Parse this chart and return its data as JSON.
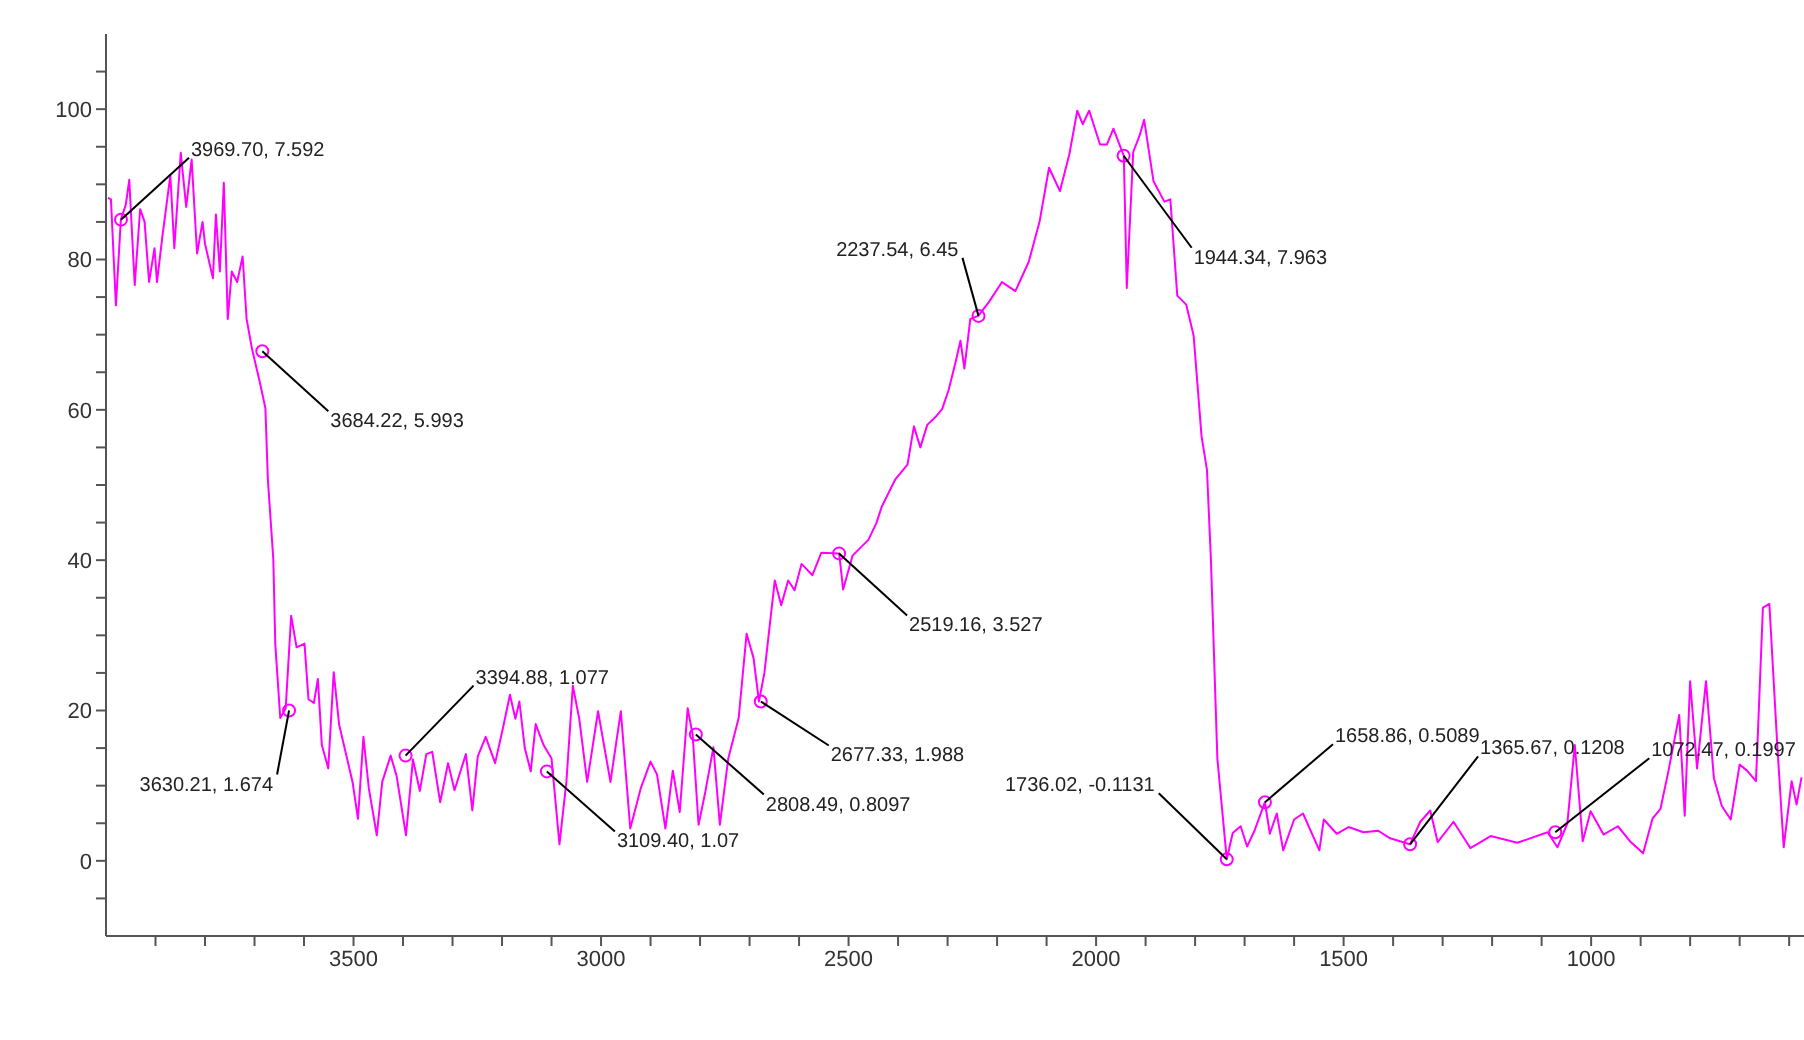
{
  "chart_data": {
    "type": "line",
    "x": [
      3996,
      3990,
      3980,
      3970,
      3960,
      3953,
      3942,
      3931,
      3922,
      3913,
      3902,
      3897,
      3886,
      3870,
      3862,
      3849,
      3838,
      3827,
      3816,
      3805,
      3800,
      3784,
      3778,
      3770,
      3762,
      3754,
      3746,
      3735,
      3724,
      3716,
      3705,
      3689,
      3678,
      3673,
      3662,
      3658,
      3648,
      3637,
      3626,
      3615,
      3599,
      3591,
      3580,
      3572,
      3564,
      3551,
      3540,
      3529,
      3518,
      3502,
      3491,
      3480,
      3469,
      3453,
      3442,
      3425,
      3413,
      3394,
      3380,
      3366,
      3353,
      3341,
      3325,
      3309,
      3296,
      3273,
      3260,
      3249,
      3233,
      3214,
      3198,
      3184,
      3173,
      3165,
      3154,
      3142,
      3132,
      3116,
      3100,
      3084,
      3070,
      3057,
      3044,
      3028,
      3006,
      2981,
      2960,
      2941,
      2920,
      2900,
      2887,
      2870,
      2855,
      2841,
      2825,
      2815,
      2803,
      2789,
      2773,
      2760,
      2743,
      2722,
      2706,
      2692,
      2681,
      2670,
      2649,
      2636,
      2622,
      2609,
      2595,
      2573,
      2555,
      2519,
      2511,
      2492,
      2460,
      2444,
      2433,
      2406,
      2381,
      2368,
      2355,
      2341,
      2325,
      2311,
      2298,
      2284,
      2274,
      2266,
      2254,
      2238,
      2217,
      2190,
      2163,
      2136,
      2114,
      2095,
      2073,
      2054,
      2038,
      2027,
      2014,
      1992,
      1978,
      1965,
      1944,
      1938,
      1925,
      1912,
      1903,
      1884,
      1862,
      1850,
      1836,
      1818,
      1803,
      1787,
      1776,
      1768,
      1755,
      1736,
      1724,
      1708,
      1695,
      1680,
      1659,
      1649,
      1635,
      1622,
      1600,
      1582,
      1549,
      1540,
      1514,
      1490,
      1460,
      1430,
      1406,
      1366,
      1345,
      1325,
      1310,
      1278,
      1244,
      1203,
      1149,
      1088,
      1068,
      1048,
      1033,
      1017,
      1001,
      975,
      946,
      920,
      895,
      876,
      860,
      844,
      822,
      811,
      800,
      786,
      768,
      752,
      736,
      718,
      700,
      685,
      667,
      653,
      640,
      624,
      611,
      595,
      585,
      575
    ],
    "series": [
      {
        "color": "#ff00ff",
        "values": [
          88.2,
          88,
          73.9,
          85.3,
          87.3,
          90.6,
          76.6,
          86.7,
          85,
          77,
          81.5,
          77,
          83.1,
          91.2,
          81.5,
          94.2,
          87,
          93.3,
          80.8,
          85,
          82.1,
          77.5,
          86,
          78.4,
          90.2,
          72.1,
          78.4,
          77,
          80.4,
          72.1,
          68.1,
          63.6,
          60.2,
          50.7,
          40.1,
          28.8,
          19,
          20.3,
          32.6,
          28.4,
          28.9,
          21.5,
          21,
          24.2,
          15.4,
          12.3,
          25.1,
          18.1,
          15,
          10.5,
          5.6,
          16.5,
          9.6,
          3.4,
          10.5,
          14,
          11.3,
          3.4,
          13.5,
          9.3,
          14.2,
          14.5,
          7.8,
          13,
          9.4,
          14.2,
          6.7,
          13.9,
          16.5,
          13,
          17.7,
          22.1,
          18.9,
          21.2,
          15,
          11.9,
          18.2,
          15.4,
          13.6,
          2.2,
          10.5,
          23.3,
          18.9,
          10.5,
          19.9,
          10.5,
          19.9,
          4.3,
          9.6,
          13.2,
          11.5,
          4.3,
          12,
          6.5,
          20.3,
          16.8,
          4.8,
          9.3,
          15.1,
          4.8,
          13.6,
          19,
          30.2,
          27,
          21.2,
          25,
          37.3,
          34,
          37.3,
          36,
          39.5,
          38,
          41,
          40.9,
          36.1,
          40.6,
          42.7,
          44.9,
          47.1,
          50.7,
          52.7,
          57.8,
          55,
          58,
          59,
          60.1,
          62.6,
          66.3,
          69.2,
          65.5,
          72.1,
          72.5,
          74.3,
          77,
          75.8,
          79.7,
          85.1,
          92.2,
          89.1,
          94,
          99.8,
          98,
          99.8,
          95.3,
          95.3,
          97.4,
          93.8,
          76.2,
          94.3,
          96.5,
          98.6,
          90.4,
          87.7,
          88,
          75.2,
          74,
          69.9,
          56.5,
          52,
          40,
          13.6,
          0.2,
          3.7,
          4.6,
          1.9,
          4,
          7.8,
          3.6,
          6.3,
          1.4,
          5.5,
          6.3,
          1.4,
          5.5,
          3.6,
          4.5,
          3.8,
          4,
          3,
          2.2,
          5.2,
          6.7,
          2.5,
          5.2,
          1.7,
          3.3,
          2.4,
          3.8,
          1.8,
          5,
          15.4,
          2.6,
          6.6,
          3.5,
          4.6,
          2.5,
          1,
          5.6,
          6.9,
          11.9,
          19.4,
          6,
          23.9,
          12.3,
          23.9,
          11,
          7.3,
          5.5,
          12.8,
          12,
          10.6,
          33.7,
          34.2,
          15.4,
          1.8,
          10.6,
          7.5,
          11.1
        ]
      }
    ],
    "xlim": [
      4000,
      570
    ],
    "xticks": [
      {
        "value": 3900,
        "label": null
      },
      {
        "value": 3800,
        "label": null
      },
      {
        "value": 3700,
        "label": null
      },
      {
        "value": 3600,
        "label": null
      },
      3500,
      {
        "value": 3400,
        "label": null
      },
      {
        "value": 3300,
        "label": null
      },
      {
        "value": 3200,
        "label": null
      },
      {
        "value": 3100,
        "label": null
      },
      3000,
      {
        "value": 2900,
        "label": null
      },
      {
        "value": 2800,
        "label": null
      },
      {
        "value": 2700,
        "label": null
      },
      {
        "value": 2600,
        "label": null
      },
      2500,
      {
        "value": 2400,
        "label": null
      },
      {
        "value": 2300,
        "label": null
      },
      {
        "value": 2200,
        "label": null
      },
      {
        "value": 2100,
        "label": null
      },
      2000,
      {
        "value": 1900,
        "label": null
      },
      {
        "value": 1800,
        "label": null
      },
      {
        "value": 1700,
        "label": null
      },
      {
        "value": 1600,
        "label": null
      },
      1500,
      {
        "value": 1400,
        "label": null
      },
      {
        "value": 1300,
        "label": null
      },
      {
        "value": 1200,
        "label": null
      },
      {
        "value": 1100,
        "label": null
      },
      1000,
      {
        "value": 900,
        "label": null
      },
      {
        "value": 800,
        "label": null
      },
      {
        "value": 700,
        "label": null
      },
      {
        "value": 600,
        "label": null
      }
    ],
    "ylim": [
      -10,
      110
    ],
    "yticks": [
      {
        "value": -5,
        "label": null
      },
      0,
      {
        "value": 5,
        "label": null
      },
      {
        "value": 10,
        "label": null
      },
      {
        "value": 15,
        "label": null
      },
      20,
      {
        "value": 25,
        "label": null
      },
      {
        "value": 30,
        "label": null
      },
      {
        "value": 35,
        "label": null
      },
      40,
      {
        "value": 45,
        "label": null
      },
      {
        "value": 50,
        "label": null
      },
      {
        "value": 55,
        "label": null
      },
      60,
      {
        "value": 65,
        "label": null
      },
      {
        "value": 70,
        "label": null
      },
      {
        "value": 75,
        "label": null
      },
      80,
      {
        "value": 85,
        "label": null
      },
      {
        "value": 90,
        "label": null
      },
      {
        "value": 95,
        "label": null
      },
      100,
      {
        "value": 105,
        "label": null
      }
    ],
    "grid": false,
    "annotations": [
      {
        "text": "3969.70, 7.592",
        "x": 3969.7,
        "y": 85.3
      },
      {
        "text": "3684.22, 5.993",
        "x": 3684.22,
        "y": 67.8
      },
      {
        "text": "3630.21, 1.674",
        "x": 3630.21,
        "y": 20
      },
      {
        "text": "3394.88, 1.077",
        "x": 3394.88,
        "y": 14
      },
      {
        "text": "3109.40, 1.07",
        "x": 3109.4,
        "y": 11.9
      },
      {
        "text": "2808.49, 0.8097",
        "x": 2808.49,
        "y": 16.8
      },
      {
        "text": "2677.33, 1.988",
        "x": 2677.33,
        "y": 21.2
      },
      {
        "text": "2519.16, 3.527",
        "x": 2519.16,
        "y": 40.9
      },
      {
        "text": "2237.54, 6.45",
        "x": 2237.54,
        "y": 72.5
      },
      {
        "text": "1944.34, 7.963",
        "x": 1944.34,
        "y": 93.8
      },
      {
        "text": "1736.02, -0.1131",
        "x": 1736.02,
        "y": 0.2
      },
      {
        "text": "1658.86, 0.5089",
        "x": 1658.86,
        "y": 7.8
      },
      {
        "text": "1365.67, 0.1208",
        "x": 1365.67,
        "y": 2.2
      },
      {
        "text": "1072.47, 0.1997",
        "x": 1072.47,
        "y": 3.8
      }
    ]
  }
}
